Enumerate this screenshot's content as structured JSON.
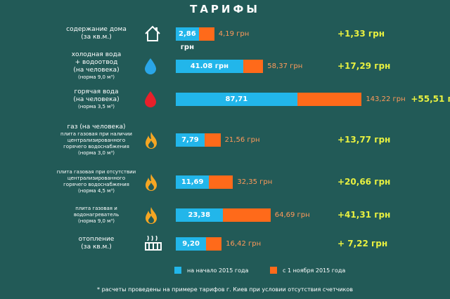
{
  "title": "ТАРИФЫ",
  "colors": {
    "background": "#225a57",
    "old": "#22b6ea",
    "new": "#ff6a1a",
    "new_text": "#ff9a5a",
    "diff": "#e8f040"
  },
  "rows": [
    {
      "lines": [
        "содержание дома",
        "(за кв.м.)"
      ],
      "sub": [],
      "icon": "house-icon",
      "old_label": "2,86 грн",
      "new_label": "4,19 грн",
      "diff_label": "+1,33 грн"
    },
    {
      "lines": [
        "холодная вода",
        "+ водоотвод",
        "(на человека)"
      ],
      "sub": [
        "(норма 9,0 м³)"
      ],
      "icon": "water-drop-icon",
      "old_label": "41.08 грн",
      "new_label": "58,37 грн",
      "diff_label": "+17,29 грн"
    },
    {
      "lines": [
        "горячая вода",
        "(на человека)"
      ],
      "sub": [
        "(норма 3,5 м³)"
      ],
      "icon": "hot-water-drop-icon",
      "old_label": "87,71",
      "new_label": "143,22 грн",
      "diff_label": "+55,51 грн"
    },
    {
      "lines": [
        "газ (на человека)"
      ],
      "sub": [
        "плита газовая при наличии",
        "централизированного",
        "горячего водоснабжения",
        "(норма 3,0 м³)"
      ],
      "icon": "flame-icon",
      "old_label": "7,79",
      "new_label": "21,56 грн",
      "diff_label": "+13,77 грн"
    },
    {
      "lines": [],
      "sub": [
        "плита газовая при отсутствии",
        "централизированного",
        "горячего водоснабжения",
        "(норма 4,5 м³)"
      ],
      "icon": "flame-icon",
      "old_label": "11,69",
      "new_label": "32,35 грн",
      "diff_label": "+20,66 грн"
    },
    {
      "lines": [],
      "sub": [
        "плита газовая и",
        "водонагреватель",
        "(норма 9,0 м³)"
      ],
      "icon": "flame-icon",
      "old_label": "23,38",
      "new_label": "64,69 грн",
      "diff_label": "+41,31 грн"
    },
    {
      "lines": [
        "отопление",
        "(за кв.м.)"
      ],
      "sub": [],
      "icon": "radiator-icon",
      "old_label": "9,20",
      "new_label": "16,42 грн",
      "diff_label": "+ 7,22 грн"
    }
  ],
  "legend": {
    "old": "на начало 2015 года",
    "new": "с 1 ноября 2015 года"
  },
  "footnote": "* расчеты проведены на примере тарифов г. Киев при условии отсутствия счетчиков",
  "chart_data": {
    "type": "bar",
    "orientation": "horizontal",
    "title": "ТАРИФЫ",
    "categories": [
      "содержание дома",
      "холодная вода + водоотвод",
      "горячая вода",
      "газ: плита газовая при наличии централизированного горячего водоснабжения",
      "плита газовая при отсутствии централизированного горячего водоснабжения",
      "плита газовая и водонагреватель",
      "отопление"
    ],
    "series": [
      {
        "name": "на начало 2015 года",
        "values": [
          2.86,
          41.08,
          87.71,
          7.79,
          11.69,
          23.38,
          9.2
        ]
      },
      {
        "name": "с 1 ноября 2015 года",
        "values": [
          4.19,
          58.37,
          143.22,
          21.56,
          32.35,
          64.69,
          16.42
        ]
      }
    ],
    "differences": [
      1.33,
      17.29,
      55.51,
      13.77,
      20.66,
      41.31,
      7.22
    ],
    "legend": "bottom"
  }
}
